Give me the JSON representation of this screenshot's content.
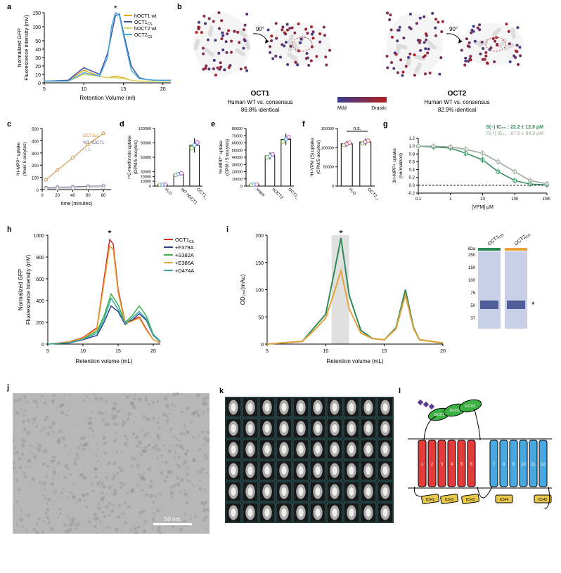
{
  "figure": {
    "background_color": "#ffffff",
    "label_fontsize": 11,
    "axis_fontsize": 8
  },
  "panel_a": {
    "label": "a",
    "type": "line",
    "xlabel": "Retention Volume (ml)",
    "ylabel": "Normalized GFP\nFluorescence Intensity (mV)",
    "xlim": [
      5,
      21
    ],
    "ylim": [
      0,
      150
    ],
    "xtick_step": 5,
    "yticks": [
      0,
      10,
      20,
      30,
      40,
      50,
      100,
      150
    ],
    "grid": false,
    "star_x": 14,
    "series": [
      {
        "name": "hOCT1 wt",
        "color": "#e6a817",
        "x": [
          5,
          8,
          10,
          12,
          13,
          14,
          15,
          16,
          17,
          18,
          19,
          20,
          21
        ],
        "y": [
          2,
          3,
          15,
          8,
          6,
          8,
          6,
          3,
          2,
          2,
          2,
          2,
          2
        ]
      },
      {
        "name": "OCT1_CS",
        "color": "#3a55a5",
        "x": [
          5,
          8,
          10,
          12,
          13,
          14,
          14.5,
          15,
          16,
          17,
          18,
          19,
          20,
          21
        ],
        "y": [
          2,
          3,
          18,
          10,
          35,
          140,
          145,
          80,
          20,
          6,
          4,
          3,
          3,
          3
        ]
      },
      {
        "name": "hOCT2 wt",
        "color": "#d9d86b",
        "x": [
          5,
          8,
          10,
          12,
          13,
          14,
          15,
          16,
          17,
          18,
          19,
          20,
          21
        ],
        "y": [
          2,
          2,
          10,
          8,
          6,
          6,
          5,
          3,
          2,
          2,
          2,
          2,
          2
        ]
      },
      {
        "name": "OCT2_CS",
        "color": "#4aa8e0",
        "x": [
          5,
          8,
          10,
          12,
          13,
          13.5,
          14,
          14.5,
          15,
          16,
          17,
          18,
          19,
          20,
          21
        ],
        "y": [
          2,
          2,
          12,
          8,
          30,
          100,
          150,
          140,
          70,
          15,
          5,
          4,
          3,
          3,
          3
        ]
      }
    ]
  },
  "panel_b": {
    "label": "b",
    "rotation_label": "90°",
    "gradient_left": "#3b3b8f",
    "gradient_right": "#b02020",
    "gradient_label_left": "Mild",
    "gradient_label_right": "Drastic",
    "left_title": "OCT1",
    "left_sub1": "Human WT vs. consensus",
    "left_sub2": "86.8% identical",
    "right_title": "OCT2",
    "right_sub1": "Human WT vs. consensus",
    "right_sub2": "82.9% identical"
  },
  "panel_c": {
    "label": "c",
    "type": "scatter-line",
    "xlabel": "time (minutes)",
    "ylabel": "³H-MPP⁺ uptake\n(fmol/ 5 oocytes)",
    "xlim": [
      0,
      90
    ],
    "ylim": [
      0,
      500
    ],
    "xtick_step": 20,
    "ytick_step": 100,
    "series": [
      {
        "name": "OCT1_CS",
        "color": "#d08b2f",
        "x": [
          5,
          20,
          40,
          60,
          80
        ],
        "y": [
          80,
          160,
          260,
          370,
          460
        ]
      },
      {
        "name": "WT hOCT1",
        "color": "#6a6a9a",
        "x": [
          5,
          20,
          40,
          60,
          80
        ],
        "y": [
          15,
          20,
          22,
          28,
          30
        ]
      },
      {
        "name": "H₂O",
        "color": "#bfbfbf",
        "x": [
          5,
          20,
          40,
          60,
          80
        ],
        "y": [
          8,
          10,
          12,
          14,
          15
        ]
      }
    ]
  },
  "panel_d": {
    "label": "d",
    "type": "bar",
    "ylabel": "¹⁴C-metformin uptake\n(DPM/5 oocytes)",
    "categories": [
      "H₂O",
      "WT hOCT1",
      "OCT1_CS"
    ],
    "values": [
      3000,
      25000,
      85000
    ],
    "errors": [
      800,
      4000,
      15000
    ],
    "bar_color": "#ffffff",
    "bar_border": "#000000",
    "point_colors": [
      "#7cb342",
      "#42a5f5",
      "#ab47bc"
    ],
    "ylim": [
      0,
      120000
    ],
    "yticks": [
      0,
      10000,
      20000,
      30000,
      60000,
      90000,
      120000
    ]
  },
  "panel_e": {
    "label": "e",
    "type": "bar",
    "ylabel": "³H-MPP⁺ uptake\n(CPM / 5 oocytes)",
    "categories": [
      "water",
      "hOCT2",
      "OCT2_CS"
    ],
    "values": [
      2000,
      42000,
      65000
    ],
    "errors": [
      600,
      5000,
      8000
    ],
    "bar_color": "#ffffff",
    "bar_border": "#000000",
    "point_colors": [
      "#7cb342",
      "#42a5f5",
      "#ab47bc"
    ],
    "ylim": [
      0,
      80000
    ],
    "yticks": [
      0,
      10000,
      20000,
      30000,
      40000,
      50000,
      60000,
      70000,
      80000
    ]
  },
  "panel_f": {
    "label": "f",
    "type": "bar",
    "ylabel": "³H-VPM (S) uptake\n(CPM/5 oocytes)",
    "categories": [
      "H₂O",
      "OCT2_CS"
    ],
    "values": [
      110000,
      115000
    ],
    "errors": [
      8000,
      9000
    ],
    "ns_label": "n.s.",
    "bar_color": "#ffffff",
    "bar_border": "#000000",
    "point_colors": [
      "#7cb342",
      "#ab47bc",
      "#ef5350"
    ],
    "ylim": [
      0,
      150000
    ],
    "ytick_step": 50000
  },
  "panel_g": {
    "label": "g",
    "type": "dose-response",
    "xlabel": "[VPM] μM",
    "ylabel": "3H-MPP+ uptake\n(normalized)",
    "xlim_log": [
      0.1,
      1000
    ],
    "ylim": [
      -0.2,
      1.2
    ],
    "ytick_step": 0.2,
    "xticks": [
      0.1,
      1,
      10,
      100,
      1000
    ],
    "ic50_text_s": "S(–) IC₅₀ : 22.2 ± 12.9 μM",
    "ic50_text_r": "R(+) IC₅₀ : 87.9 ± 64.9 μM",
    "series": [
      {
        "name": "S(-)",
        "color": "#2e8b57",
        "x": [
          0.1,
          0.3,
          1,
          3,
          10,
          30,
          100,
          300,
          1000
        ],
        "y": [
          1.0,
          0.98,
          0.95,
          0.82,
          0.65,
          0.35,
          0.12,
          0.03,
          0.01
        ]
      },
      {
        "name": "R(+)",
        "color": "#9aa89a",
        "x": [
          0.1,
          0.3,
          1,
          3,
          10,
          30,
          100,
          300,
          1000
        ],
        "y": [
          1.0,
          1.0,
          0.98,
          0.92,
          0.82,
          0.6,
          0.35,
          0.12,
          0.04
        ]
      }
    ]
  },
  "panel_h": {
    "label": "h",
    "type": "line",
    "xlabel": "Retention volume (mL)",
    "ylabel": "Normalized GFP\nFluorescence Intensity (mV)",
    "xlim": [
      5,
      21
    ],
    "ylim": [
      0,
      1000
    ],
    "xtick_step": 5,
    "ytick_step": 200,
    "series": [
      {
        "name": "OCT1_CS",
        "color": "#d92525",
        "x": [
          5,
          8,
          10,
          12,
          13,
          13.8,
          14.3,
          15,
          16,
          17,
          18,
          19,
          20,
          21
        ],
        "y": [
          0,
          20,
          60,
          150,
          600,
          960,
          920,
          500,
          200,
          220,
          250,
          140,
          40,
          10
        ]
      },
      {
        "name": "+F379A",
        "color": "#2a3f8f",
        "x": [
          5,
          8,
          10,
          12,
          13,
          14,
          15,
          16,
          17,
          18,
          19,
          20,
          21
        ],
        "y": [
          0,
          10,
          40,
          80,
          200,
          350,
          300,
          180,
          220,
          280,
          220,
          80,
          20
        ]
      },
      {
        "name": "+S382A",
        "color": "#3bb143",
        "x": [
          5,
          8,
          10,
          12,
          13,
          14,
          15,
          16,
          17,
          18,
          19,
          20,
          21
        ],
        "y": [
          0,
          15,
          50,
          120,
          260,
          460,
          360,
          200,
          260,
          350,
          260,
          90,
          25
        ]
      },
      {
        "name": "+E386A",
        "color": "#e8a62e",
        "x": [
          5,
          8,
          10,
          12,
          13,
          13.8,
          14.3,
          15,
          16,
          17,
          18,
          19,
          20,
          21
        ],
        "y": [
          0,
          18,
          55,
          140,
          560,
          900,
          870,
          470,
          190,
          210,
          240,
          130,
          40,
          12
        ]
      },
      {
        "name": "+D474A",
        "color": "#34a6a6",
        "x": [
          5,
          8,
          10,
          12,
          13,
          14,
          15,
          16,
          17,
          18,
          19,
          20,
          21
        ],
        "y": [
          0,
          12,
          45,
          100,
          230,
          420,
          320,
          190,
          240,
          300,
          230,
          85,
          22
        ]
      }
    ]
  },
  "panel_i": {
    "label": "i",
    "type": "line",
    "xlabel": "Retention volume (mL)",
    "ylabel": "OD₂₈₀(mAu)",
    "xlim": [
      5,
      20
    ],
    "ylim": [
      0,
      200
    ],
    "xtick_step": 5,
    "ytick_step": 50,
    "highlight_band": [
      10.5,
      12
    ],
    "band_color": "#e0e0e0",
    "series": [
      {
        "name": "OCT1_CS",
        "color": "#2e8b57",
        "x": [
          5,
          8,
          9,
          10,
          10.8,
          11.3,
          12,
          13,
          14,
          15,
          16,
          16.8,
          17.5,
          18,
          20
        ],
        "y": [
          0,
          5,
          30,
          55,
          140,
          195,
          90,
          25,
          10,
          8,
          30,
          100,
          30,
          8,
          2
        ]
      },
      {
        "name": "OCT2_CS",
        "color": "#e6a23c",
        "x": [
          5,
          8,
          9,
          10,
          10.8,
          11.3,
          12,
          13,
          14,
          15,
          16,
          16.8,
          17.5,
          18,
          20
        ],
        "y": [
          0,
          5,
          25,
          48,
          100,
          135,
          65,
          20,
          10,
          8,
          28,
          90,
          28,
          8,
          2
        ]
      }
    ],
    "gel": {
      "lane_labels": [
        "OCT1_CS",
        "OCT2_CS"
      ],
      "lane_colors": [
        "#2e8b57",
        "#e6a23c"
      ],
      "mw_label": "kDa",
      "mw_marks": [
        250,
        150,
        100,
        75,
        50,
        37
      ],
      "band_y": 50,
      "lane_bg": "#c8d0e8",
      "band_color": "#3a4a8a"
    }
  },
  "panel_j": {
    "label": "j",
    "scale_bar": "50 nm",
    "bg": "#b7b7b7"
  },
  "panel_k": {
    "label": "k",
    "rows": 6,
    "cols": 10,
    "bg": "#1a1a1a",
    "box_border": "#3aa6a6"
  },
  "panel_l": {
    "label": "l",
    "colors": {
      "n_domain": "#e23b3b",
      "c_domain": "#4aa8e0",
      "ecd": "#3bb143",
      "ich": "#e8c84a",
      "glycan": "#5a3b8f",
      "outline": "#000000"
    },
    "ecd_labels": [
      "ECD1",
      "ECD2",
      "ECD3"
    ],
    "ich_labels": [
      "ICH1",
      "ICH2",
      "ICH3",
      "ICH4",
      "ICH5"
    ],
    "n_tm": [
      1,
      2,
      3,
      4,
      5,
      6
    ],
    "c_tm": [
      7,
      8,
      9,
      10,
      11,
      12
    ]
  }
}
